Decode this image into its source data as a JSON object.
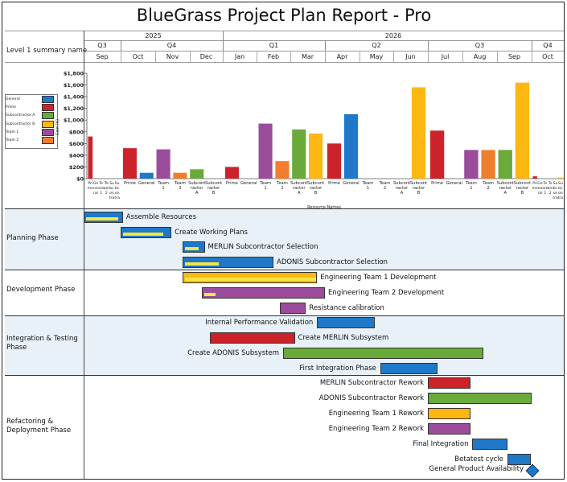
{
  "title": "BlueGrass Project Plan Report - Pro",
  "header": {
    "row_label": "Level 1 summary name",
    "years": [
      "2025",
      "2026"
    ],
    "quarters": [
      "Q3",
      "Q4",
      "Q1",
      "Q2",
      "Q3",
      "Q4"
    ],
    "months": [
      "Sep",
      "Oct",
      "Nov",
      "Dec",
      "Jan",
      "Feb",
      "Mar",
      "Apr",
      "May",
      "Jun",
      "Jul",
      "Aug",
      "Sep",
      "Oct"
    ]
  },
  "legend": [
    {
      "label": "General",
      "color": "#1f78c8"
    },
    {
      "label": "Prime",
      "color": "#cc2229"
    },
    {
      "label": "Subcontractor A",
      "color": "#6aaa3a"
    },
    {
      "label": "Subcontractor B",
      "color": "#fcb712"
    },
    {
      "label": "Team 1",
      "color": "#9b4c9b"
    },
    {
      "label": "Team 2",
      "color": "#f07f2d"
    }
  ],
  "chart_data": {
    "type": "bar",
    "ylabel": "Cost (K)",
    "xlabel": "Resource Names",
    "ylim": [
      0,
      1800
    ],
    "y_ticks": [
      "$0",
      "$200",
      "$400",
      "$600",
      "$800",
      "$1,000",
      "$1,200",
      "$1,400",
      "$1,600",
      "$1,800"
    ],
    "groups": [
      {
        "month": "Sep",
        "category_labels": [
          "Pri me",
          "Ge ne ral",
          "Te am 1",
          "Te am 2",
          "Su bc on tra",
          "Su bc on tra"
        ],
        "bars": [
          {
            "resource": "Prime",
            "value": 720
          },
          {
            "resource": "General",
            "value": 0
          },
          {
            "resource": "Team 1",
            "value": 0
          },
          {
            "resource": "Team 2",
            "value": 0
          },
          {
            "resource": "Subcontractor A",
            "value": 0
          },
          {
            "resource": "Subcontractor B",
            "value": 0
          }
        ]
      },
      {
        "month": "Oct-Dec",
        "category_labels": [
          "Prime",
          "General",
          "Team 1",
          "Team 2",
          "Subcont ractor A",
          "Subcont ractor B"
        ],
        "bars": [
          {
            "resource": "Prime",
            "value": 520
          },
          {
            "resource": "General",
            "value": 100
          },
          {
            "resource": "Team 1",
            "value": 500
          },
          {
            "resource": "Team 2",
            "value": 100
          },
          {
            "resource": "Subcontractor A",
            "value": 160
          },
          {
            "resource": "Subcontractor B",
            "value": 0
          }
        ]
      },
      {
        "month": "Jan-Mar",
        "category_labels": [
          "Prime",
          "General",
          "Team 1",
          "Team 2",
          "Subcont ractor A",
          "Subcont ractor B"
        ],
        "bars": [
          {
            "resource": "Prime",
            "value": 200
          },
          {
            "resource": "General",
            "value": 0
          },
          {
            "resource": "Team 1",
            "value": 940
          },
          {
            "resource": "Team 2",
            "value": 300
          },
          {
            "resource": "Subcontractor A",
            "value": 840
          },
          {
            "resource": "Subcontractor B",
            "value": 770
          }
        ]
      },
      {
        "month": "Apr-Jun",
        "category_labels": [
          "Prime",
          "General",
          "Team 1",
          "Team 2",
          "Subcont ractor A",
          "Subcont ractor B"
        ],
        "bars": [
          {
            "resource": "Prime",
            "value": 600
          },
          {
            "resource": "General",
            "value": 1100
          },
          {
            "resource": "Team 1",
            "value": 0
          },
          {
            "resource": "Team 2",
            "value": 0
          },
          {
            "resource": "Subcontractor A",
            "value": 0
          },
          {
            "resource": "Subcontractor B",
            "value": 1560
          }
        ]
      },
      {
        "month": "Jul-Sep",
        "category_labels": [
          "Prime",
          "General",
          "Team 1",
          "Team 2",
          "Subcont ractor A",
          "Subcont ractor B"
        ],
        "bars": [
          {
            "resource": "Prime",
            "value": 820
          },
          {
            "resource": "General",
            "value": 0
          },
          {
            "resource": "Team 1",
            "value": 490
          },
          {
            "resource": "Team 2",
            "value": 490
          },
          {
            "resource": "Subcontractor A",
            "value": 490
          },
          {
            "resource": "Subcontractor B",
            "value": 1640
          }
        ]
      },
      {
        "month": "Oct",
        "category_labels": [
          "Pri me",
          "Ge ne ral",
          "Te am 1",
          "Te am 2",
          "Su bc on tra",
          "Su bc on tra"
        ],
        "bars": [
          {
            "resource": "Prime",
            "value": 40
          },
          {
            "resource": "General",
            "value": 0
          },
          {
            "resource": "Team 1",
            "value": 0
          },
          {
            "resource": "Team 2",
            "value": 0
          },
          {
            "resource": "Subcontractor A",
            "value": 0
          },
          {
            "resource": "Subcontractor B",
            "value": 20
          }
        ]
      }
    ]
  },
  "phases": [
    {
      "name": "Planning Phase",
      "shaded": true
    },
    {
      "name": "Development Phase",
      "shaded": false
    },
    {
      "name": "Integration & Testing Phase",
      "shaded": true
    },
    {
      "name": "Refactoring & Deployment Phase",
      "shaded": false
    }
  ],
  "tasks": [
    {
      "name": "Assemble Resources",
      "phase": "Planning Phase",
      "start": "2025-09-01",
      "end": "2025-10-03",
      "color": "#1f78c8",
      "progress": 0.9,
      "label_side": "right"
    },
    {
      "name": "Create Working Plans",
      "phase": "Planning Phase",
      "start": "2025-10-01",
      "end": "2025-11-15",
      "color": "#1f78c8",
      "progress": 0.85,
      "label_side": "right"
    },
    {
      "name": "MERLIN Subcontractor Selection",
      "phase": "Planning Phase",
      "start": "2025-11-25",
      "end": "2025-12-15",
      "color": "#1f78c8",
      "progress": 0.7,
      "label_side": "right"
    },
    {
      "name": "ADONIS Subcontractor Selection",
      "phase": "Planning Phase",
      "start": "2025-11-25",
      "end": "2026-02-15",
      "color": "#1f78c8",
      "progress": 0.38,
      "label_side": "right"
    },
    {
      "name": "Engineering Team 1 Development",
      "phase": "Development Phase",
      "start": "2025-11-25",
      "end": "2026-03-25",
      "color": "#fcb712",
      "progress": 1,
      "label_side": "right"
    },
    {
      "name": "Engineering Team 2 Development",
      "phase": "Development Phase",
      "start": "2025-12-12",
      "end": "2026-04-01",
      "color": "#9b4c9b",
      "progress": 0.1,
      "label_side": "right"
    },
    {
      "name": "Resistance calibration",
      "phase": "Development Phase",
      "start": "2026-02-20",
      "end": "2026-03-15",
      "color": "#9b4c9b",
      "progress": 0,
      "label_side": "right"
    },
    {
      "name": "Internal Performance Validation",
      "phase": "Integration & Testing Phase",
      "start": "2026-03-25",
      "end": "2026-05-15",
      "color": "#1f78c8",
      "progress": 0,
      "label_side": "left"
    },
    {
      "name": "Create MERLIN Subsystem",
      "phase": "Integration & Testing Phase",
      "start": "2025-12-20",
      "end": "2026-03-05",
      "color": "#cc2229",
      "progress": 0,
      "label_side": "right"
    },
    {
      "name": "Create ADONIS Subsystem",
      "phase": "Integration & Testing Phase",
      "start": "2026-02-23",
      "end": "2026-08-20",
      "color": "#6aaa3a",
      "progress": 0,
      "label_side": "left"
    },
    {
      "name": "First Integration Phase",
      "phase": "Integration & Testing Phase",
      "start": "2026-05-20",
      "end": "2026-07-10",
      "color": "#1f78c8",
      "progress": 0,
      "label_side": "left"
    },
    {
      "name": "MERLIN Subcontractor Rework",
      "phase": "Refactoring & Deployment Phase",
      "start": "2026-07-01",
      "end": "2026-08-08",
      "color": "#cc2229",
      "progress": 0,
      "label_side": "left"
    },
    {
      "name": "ADONIS Subcontractor Rework",
      "phase": "Refactoring & Deployment Phase",
      "start": "2026-07-01",
      "end": "2026-10-01",
      "color": "#6aaa3a",
      "progress": 0,
      "label_side": "left"
    },
    {
      "name": "Engineering Team 1 Rework",
      "phase": "Refactoring & Deployment Phase",
      "start": "2026-07-01",
      "end": "2026-08-08",
      "color": "#fcb712",
      "progress": 0,
      "label_side": "left"
    },
    {
      "name": "Engineering Team 2 Rework",
      "phase": "Refactoring & Deployment Phase",
      "start": "2026-07-01",
      "end": "2026-08-08",
      "color": "#9b4c9b",
      "progress": 0,
      "label_side": "left"
    },
    {
      "name": "Final Integration",
      "phase": "Refactoring & Deployment Phase",
      "start": "2026-08-10",
      "end": "2026-09-10",
      "color": "#1f78c8",
      "progress": 0,
      "label_side": "left"
    },
    {
      "name": "Betatest cycle",
      "phase": "Refactoring & Deployment Phase",
      "start": "2026-09-10",
      "end": "2026-09-30",
      "color": "#1f78c8",
      "progress": 0,
      "label_side": "left"
    }
  ],
  "milestones": [
    {
      "name": "General Product Availability",
      "phase": "Refactoring & Deployment Phase",
      "date": "2026-10-01",
      "color": "#1f78c8"
    }
  ]
}
